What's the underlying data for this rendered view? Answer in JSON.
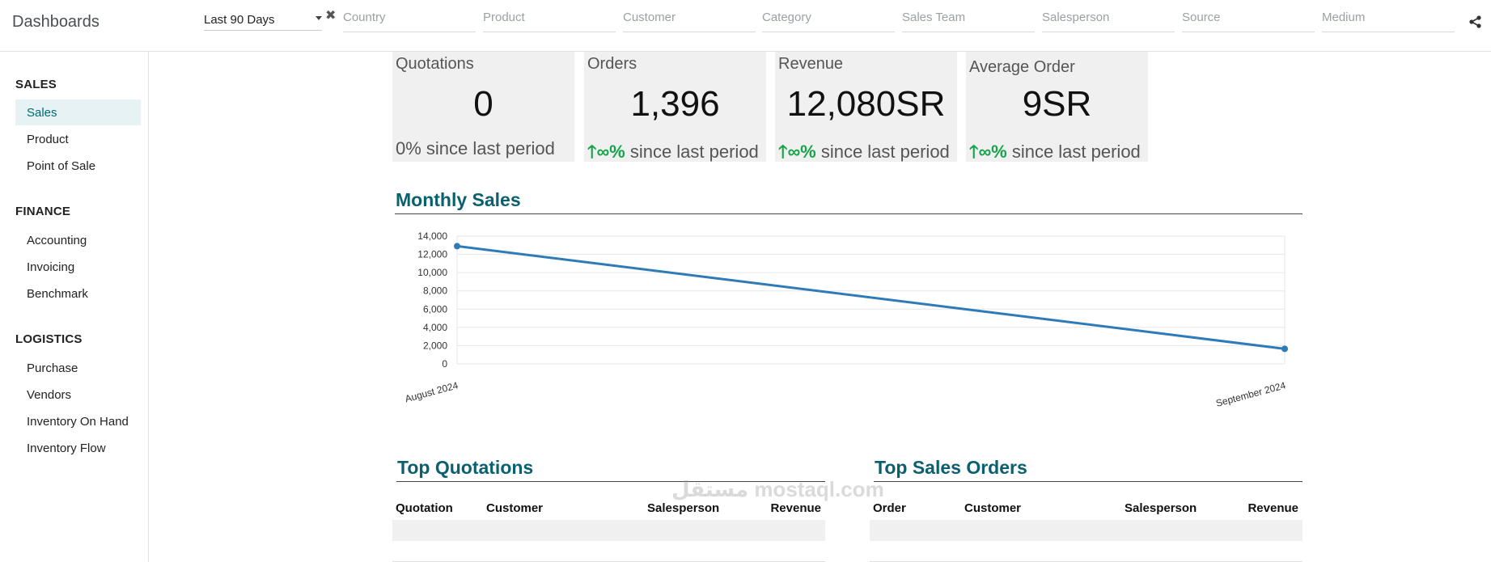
{
  "header": {
    "title": "Dashboards",
    "period": "Last 90 Days",
    "filters": [
      "Country",
      "Product",
      "Customer",
      "Category",
      "Sales Team",
      "Salesperson",
      "Source",
      "Medium"
    ]
  },
  "sidebar": {
    "sections": [
      {
        "title": "SALES",
        "items": [
          "Sales",
          "Product",
          "Point of Sale"
        ]
      },
      {
        "title": "FINANCE",
        "items": [
          "Accounting",
          "Invoicing",
          "Benchmark"
        ]
      },
      {
        "title": "LOGISTICS",
        "items": [
          "Purchase",
          "Vendors",
          "Inventory On Hand",
          "Inventory Flow"
        ]
      }
    ],
    "active": "Sales"
  },
  "kpis": [
    {
      "label": "Quotations",
      "value": "0",
      "trend_prefix": "",
      "trend_value": "0%",
      "trend_text": " since last period",
      "trend_up": false
    },
    {
      "label": "Orders",
      "value": "1,396",
      "trend_prefix": "🡑",
      "trend_value": "∞%",
      "trend_text": " since last period",
      "trend_up": true
    },
    {
      "label": "Revenue",
      "value": "12,080SR",
      "trend_prefix": "🡑",
      "trend_value": "∞%",
      "trend_text": " since last period",
      "trend_up": true
    },
    {
      "label": "Average Order",
      "value": "9SR",
      "trend_prefix": "🡑",
      "trend_value": "∞%",
      "trend_text": " since last period",
      "trend_up": true
    }
  ],
  "monthly_sales": {
    "title": "Monthly Sales"
  },
  "chart_data": {
    "type": "line",
    "categories": [
      "August 2024",
      "September 2024"
    ],
    "series": [
      {
        "values": [
          12900,
          1650
        ]
      }
    ],
    "ylim": [
      0,
      14000
    ],
    "yticks": [
      "0",
      "2,000",
      "4,000",
      "6,000",
      "8,000",
      "10,000",
      "12,000",
      "14,000"
    ],
    "grid": true,
    "color": "#2e7bb8"
  },
  "top_quotations": {
    "title": "Top Quotations",
    "columns": [
      "Quotation",
      "Customer",
      "Salesperson",
      "Revenue"
    ]
  },
  "top_sales_orders": {
    "title": "Top Sales Orders",
    "columns": [
      "Order",
      "Customer",
      "Salesperson",
      "Revenue"
    ]
  },
  "watermark": "مستقل mostaql.com"
}
